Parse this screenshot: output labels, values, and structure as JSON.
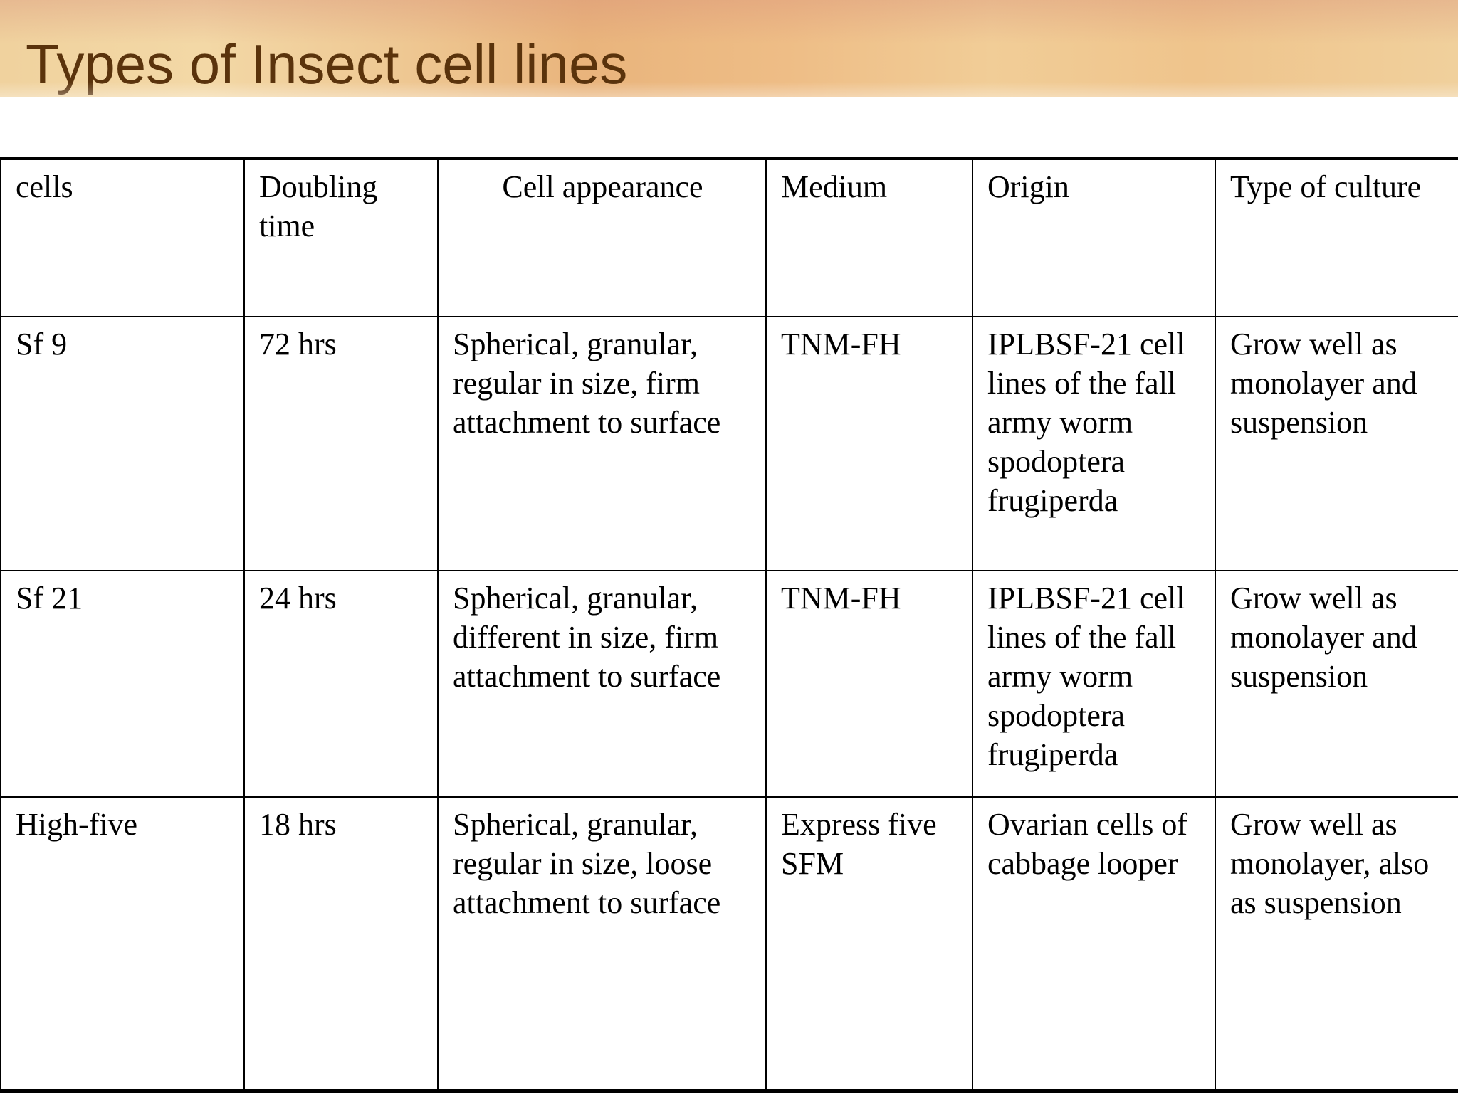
{
  "slide": {
    "title": "Types of Insect cell lines"
  },
  "table": {
    "headers": [
      "cells",
      "Doubling time",
      "Cell appearance",
      "Medium",
      "Origin",
      "Type of culture"
    ],
    "rows": [
      [
        "Sf 9",
        "72 hrs",
        "Spherical, granular, regular in size, firm attachment to surface",
        "TNM-FH",
        "IPLBSF-21 cell lines of the fall army worm spodoptera frugiperda",
        "Grow well as monolayer and suspension"
      ],
      [
        "Sf 21",
        "24 hrs",
        "Spherical, granular, different in size, firm attachment to surface",
        "TNM-FH",
        "IPLBSF-21 cell lines of the fall army worm spodoptera frugiperda",
        "Grow well as monolayer and suspension"
      ],
      [
        "High-five",
        "18 hrs",
        "Spherical, granular, regular in size, loose attachment to surface",
        "Express five SFM",
        "Ovarian cells of cabbage looper",
        "Grow well as monolayer, also as suspension"
      ]
    ]
  }
}
